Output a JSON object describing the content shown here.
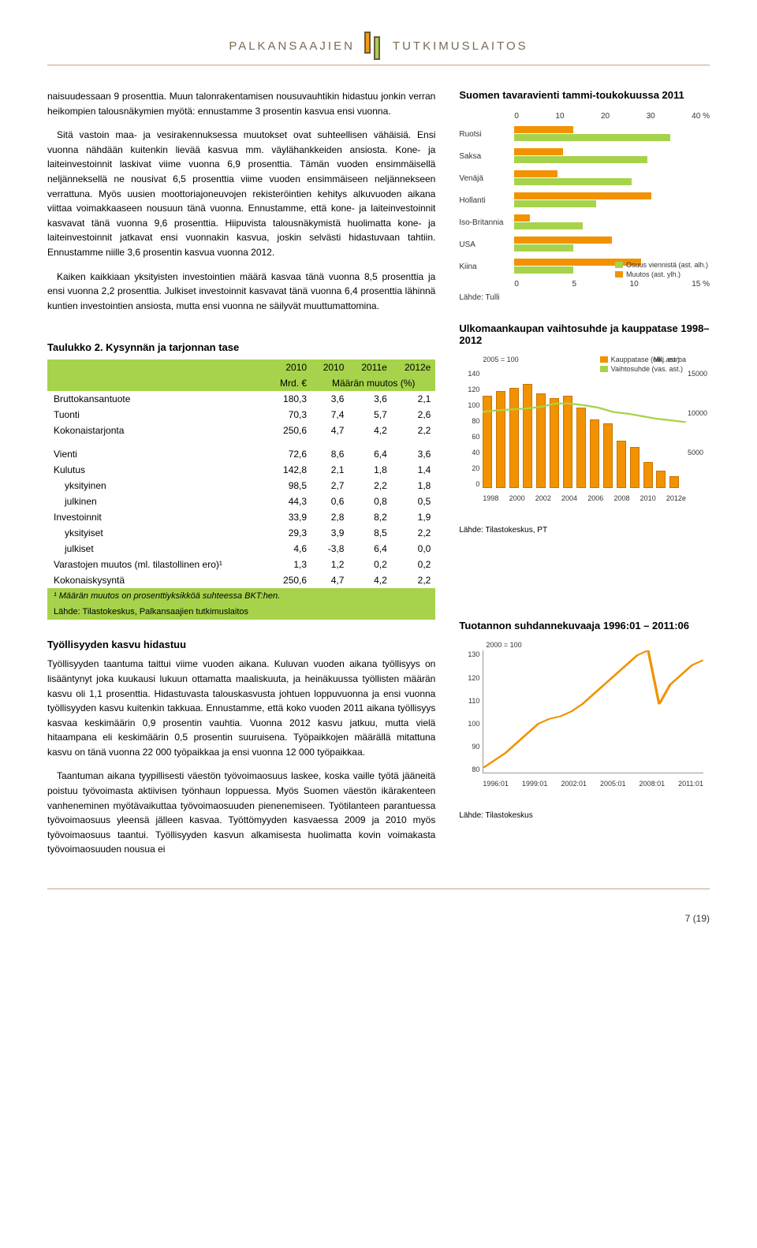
{
  "header": {
    "left": "PALKANSAAJIEN",
    "right": "TUTKIMUSLAITOS"
  },
  "para1": "naisuudessaan 9 prosenttia. Muun talonrakentamisen nousuvauhtikin hidastuu jonkin verran heikompien talousnäkymien myötä: ennustamme 3 prosentin kasvua ensi vuonna.",
  "para2": "Sitä vastoin maa- ja vesirakennuksessa muutokset ovat suhteellisen vähäisiä. Ensi vuonna nähdään kuitenkin lievää kasvua mm. väylähankkeiden ansiosta. Kone- ja laiteinvestoinnit laskivat viime vuonna 6,9 prosenttia. Tämän vuoden ensimmäisellä neljänneksellä ne nousivat 6,5 prosenttia viime vuoden ensimmäiseen neljännekseen verrattuna. Myös uusien moottoriajoneuvojen rekisteröintien kehitys alkuvuoden aikana viittaa voimakkaaseen nousuun tänä vuonna. Ennustamme, että kone- ja laiteinvestoinnit kasvavat tänä vuonna 9,6 prosenttia. Hiipuvista talousnäkymistä huolimatta kone- ja laiteinvestoinnit jatkavat ensi vuonnakin kasvua, joskin selvästi hidastuvaan tahtiin. Ennustamme niille 3,6 prosentin kasvua vuonna 2012.",
  "para3": "Kaiken kaikkiaan yksityisten investointien määrä kasvaa tänä vuonna 8,5 prosenttia ja ensi vuonna 2,2 prosenttia. Julkiset investoinnit kasvavat tänä vuonna 6,4 prosenttia lähinnä kuntien investointien ansiosta, mutta ensi vuonna ne säilyvät muuttumattomina.",
  "chart1": {
    "title": "Suomen tavaravienti tammi-toukokuussa 2011",
    "x_top": [
      "0",
      "10",
      "20",
      "30",
      "40 %"
    ],
    "x_bot": [
      "0",
      "5",
      "10",
      "15 %"
    ],
    "rows": [
      {
        "label": "Ruotsi",
        "top_pct": 30,
        "bot_pct": 80
      },
      {
        "label": "Saksa",
        "top_pct": 25,
        "bot_pct": 68
      },
      {
        "label": "Venäjä",
        "top_pct": 22,
        "bot_pct": 60
      },
      {
        "label": "Hollanti",
        "top_pct": 70,
        "bot_pct": 42
      },
      {
        "label": "Iso-Britannia",
        "top_pct": 8,
        "bot_pct": 35
      },
      {
        "label": "USA",
        "top_pct": 50,
        "bot_pct": 30
      },
      {
        "label": "Kiina",
        "top_pct": 65,
        "bot_pct": 30
      }
    ],
    "legend1": "Osuus viennistä (ast. alh.)",
    "legend2": "Muutos (ast. ylh.)",
    "color_top": "#f29200",
    "color_bot": "#a6d34b",
    "source": "Lähde: Tulli"
  },
  "table2": {
    "title": "Taulukko 2. Kysynnän ja tarjonnan tase",
    "headers": [
      "",
      "2010",
      "2010",
      "2011e",
      "2012e"
    ],
    "subheaders": [
      "",
      "Mrd. €",
      "Määrän muutos (%)",
      "",
      ""
    ],
    "rows": [
      {
        "cells": [
          "Bruttokansantuote",
          "180,3",
          "3,6",
          "3,6",
          "2,1"
        ]
      },
      {
        "cells": [
          "Tuonti",
          "70,3",
          "7,4",
          "5,7",
          "2,6"
        ]
      },
      {
        "cells": [
          "Kokonaistarjonta",
          "250,6",
          "4,7",
          "4,2",
          "2,2"
        ]
      },
      {
        "gap": true
      },
      {
        "cells": [
          "Vienti",
          "72,6",
          "8,6",
          "6,4",
          "3,6"
        ]
      },
      {
        "cells": [
          "Kulutus",
          "142,8",
          "2,1",
          "1,8",
          "1,4"
        ]
      },
      {
        "indent": true,
        "cells": [
          "yksityinen",
          "98,5",
          "2,7",
          "2,2",
          "1,8"
        ]
      },
      {
        "indent": true,
        "cells": [
          "julkinen",
          "44,3",
          "0,6",
          "0,8",
          "0,5"
        ]
      },
      {
        "cells": [
          "Investoinnit",
          "33,9",
          "2,8",
          "8,2",
          "1,9"
        ]
      },
      {
        "indent": true,
        "cells": [
          "yksityiset",
          "29,3",
          "3,9",
          "8,5",
          "2,2"
        ]
      },
      {
        "indent": true,
        "cells": [
          "julkiset",
          "4,6",
          "-3,8",
          "6,4",
          "0,0"
        ]
      },
      {
        "cells": [
          "Varastojen muutos (ml. tilastollinen ero)¹",
          "1,3",
          "1,2",
          "0,2",
          "0,2"
        ]
      },
      {
        "cells": [
          "Kokonaiskysyntä",
          "250,6",
          "4,7",
          "4,2",
          "2,2"
        ]
      }
    ],
    "footnote": "¹ Määrän muutos on prosenttiyksikköä suhteessa BKT:hen.",
    "source": "Lähde: Tilastokeskus, Palkansaajien tutkimuslaitos"
  },
  "chart2": {
    "title": "Ulkomaankaupan vaihtosuhde ja kauppatase 1998–2012",
    "note_left": "2005 = 100",
    "note_right": "Milj. euroa",
    "legend1": "Kauppatase (oik. ast.)",
    "legend2": "Vaihtosuhde (vas. ast.)",
    "y_left": [
      "140",
      "120",
      "100",
      "80",
      "60",
      "40",
      "20",
      "0"
    ],
    "y_right": [
      "15000",
      "10000",
      "5000",
      ""
    ],
    "x": [
      "1998",
      "2000",
      "2002",
      "2004",
      "2006",
      "2008",
      "2010",
      "2012e"
    ],
    "bars": [
      78,
      82,
      85,
      88,
      80,
      76,
      78,
      68,
      58,
      55,
      40,
      35,
      22,
      15,
      10
    ],
    "line": [
      90,
      92,
      93,
      94,
      96,
      100,
      100,
      98,
      95,
      90,
      88,
      85,
      82,
      80,
      78
    ],
    "bar_color": "#f29200",
    "line_color": "#a6d34b",
    "dot_color": "#3b8b2c",
    "source": "Lähde: Tilastokeskus, PT"
  },
  "section2_title": "Työllisyyden kasvu hidastuu",
  "para4": "Työllisyyden taantuma taittui viime vuoden aikana. Kuluvan vuoden aikana työllisyys on lisääntynyt joka kuukausi lukuun ottamatta maaliskuuta, ja heinäkuussa työllisten määrän kasvu oli 1,1 prosenttia. Hidastuvasta talouskasvusta johtuen loppuvuonna ja ensi vuonna työllisyyden kasvu kuitenkin takkuaa. Ennustamme, että koko vuoden 2011 aikana työllisyys kasvaa keskimäärin 0,9 prosentin vauhtia. Vuonna 2012 kasvu jatkuu, mutta vielä hitaampana eli keskimäärin 0,5 prosentin suuruisena. Työpaikkojen määrällä mitattuna kasvu on tänä vuonna 22 000 työpaikkaa ja ensi vuonna 12 000 työpaikkaa.",
  "para5": "Taantuman aikana tyypillisesti väestön työvoimaosuus laskee, koska vaille työtä jääneitä poistuu työvoimasta aktiivisen työnhaun loppuessa. Myös Suomen väestön ikärakenteen vanheneminen myötävaikuttaa työvoimaosuuden pienenemiseen. Työtilanteen parantuessa työvoimaosuus yleensä jälleen kasvaa. Työttömyyden kasvaessa 2009 ja 2010 myös työvoimaosuus taantui. Työllisyyden kasvun alkamisesta huolimatta kovin voimakasta työvoimaosuuden nousua ei",
  "chart3": {
    "title": "Tuotannon suhdannekuvaaja 1996:01 – 2011:06",
    "note": "2000 = 100",
    "y": [
      "130",
      "120",
      "110",
      "100",
      "90",
      "80"
    ],
    "x": [
      "1996:01",
      "1999:01",
      "2002:01",
      "2005:01",
      "2008:01",
      "2011:01"
    ],
    "points": [
      82,
      85,
      88,
      92,
      96,
      100,
      102,
      103,
      105,
      108,
      112,
      116,
      120,
      124,
      128,
      130,
      108,
      116,
      120,
      124,
      126
    ],
    "line_color": "#f29200",
    "source": "Lähde: Tilastokeskus"
  },
  "pagenum": "7 (19)"
}
